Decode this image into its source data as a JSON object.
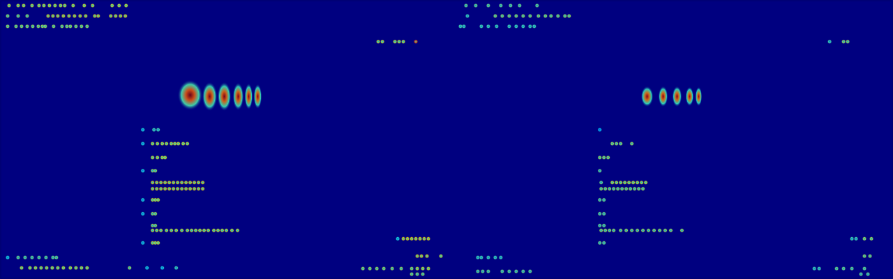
{
  "chart_data": {
    "type": "heatmap",
    "tick_labels": false,
    "grid": false,
    "xlim": [
      0,
      1280
    ],
    "ylim": [
      0,
      400
    ],
    "value_range": [
      0,
      1
    ],
    "blobs": [
      [
        272,
        264,
        1,
        36,
        44
      ],
      [
        300,
        262,
        0.97,
        22,
        42
      ],
      [
        321,
        262,
        0.97,
        20,
        42
      ],
      [
        341,
        262,
        0.96,
        16,
        40
      ],
      [
        356,
        262,
        0.95,
        12,
        38
      ],
      [
        369,
        262,
        0.95,
        12,
        36
      ],
      [
        928,
        262,
        0.95,
        18,
        30
      ],
      [
        951,
        262,
        0.95,
        14,
        30
      ],
      [
        971,
        262,
        0.95,
        14,
        30
      ],
      [
        989,
        262,
        0.93,
        12,
        28
      ],
      [
        1002,
        262,
        0.93,
        10,
        28
      ]
    ],
    "points": [
      [
        12,
        393,
        0.6
      ],
      [
        25,
        393,
        0.6
      ],
      [
        33,
        393,
        0.6
      ],
      [
        45,
        393,
        0.6
      ],
      [
        55,
        393,
        0.6
      ],
      [
        62,
        393,
        0.6
      ],
      [
        70,
        393,
        0.6
      ],
      [
        78,
        393,
        0.6
      ],
      [
        86,
        393,
        0.6
      ],
      [
        92,
        393,
        0.6
      ],
      [
        104,
        393,
        0.6
      ],
      [
        120,
        393,
        0.6
      ],
      [
        132,
        393,
        0.6
      ],
      [
        160,
        393,
        0.6
      ],
      [
        170,
        393,
        0.6
      ],
      [
        180,
        393,
        0.6
      ],
      [
        10,
        378,
        0.55
      ],
      [
        25,
        378,
        0.55
      ],
      [
        38,
        378,
        0.55
      ],
      [
        68,
        378,
        0.65
      ],
      [
        75,
        378,
        0.65
      ],
      [
        82,
        378,
        0.65
      ],
      [
        90,
        378,
        0.65
      ],
      [
        98,
        378,
        0.65
      ],
      [
        106,
        378,
        0.65
      ],
      [
        114,
        378,
        0.65
      ],
      [
        122,
        378,
        0.65
      ],
      [
        135,
        378,
        0.65
      ],
      [
        140,
        378,
        0.65
      ],
      [
        158,
        378,
        0.65
      ],
      [
        165,
        378,
        0.65
      ],
      [
        172,
        378,
        0.65
      ],
      [
        179,
        378,
        0.65
      ],
      [
        10,
        363,
        0.55
      ],
      [
        22,
        363,
        0.55
      ],
      [
        30,
        363,
        0.55
      ],
      [
        38,
        363,
        0.55
      ],
      [
        46,
        363,
        0.55
      ],
      [
        54,
        363,
        0.55
      ],
      [
        60,
        363,
        0.55
      ],
      [
        64,
        363,
        0.55
      ],
      [
        76,
        363,
        0.55
      ],
      [
        88,
        363,
        0.55
      ],
      [
        95,
        363,
        0.55
      ],
      [
        100,
        363,
        0.55
      ],
      [
        108,
        363,
        0.55
      ],
      [
        116,
        363,
        0.55
      ],
      [
        124,
        363,
        0.55
      ],
      [
        542,
        341,
        0.6
      ],
      [
        548,
        341,
        0.6
      ],
      [
        566,
        341,
        0.6
      ],
      [
        572,
        341,
        0.6
      ],
      [
        578,
        341,
        0.6
      ],
      [
        596,
        341,
        0.8
      ],
      [
        204,
        214,
        0.4
      ],
      [
        220,
        214,
        0.45
      ],
      [
        226,
        214,
        0.45
      ],
      [
        204,
        194,
        0.4
      ],
      [
        218,
        194,
        0.6
      ],
      [
        225,
        194,
        0.6
      ],
      [
        232,
        194,
        0.6
      ],
      [
        238,
        194,
        0.6
      ],
      [
        245,
        194,
        0.6
      ],
      [
        250,
        194,
        0.6
      ],
      [
        255,
        194,
        0.6
      ],
      [
        262,
        194,
        0.6
      ],
      [
        268,
        194,
        0.6
      ],
      [
        218,
        174,
        0.6
      ],
      [
        225,
        174,
        0.6
      ],
      [
        232,
        174,
        0.6
      ],
      [
        236,
        174,
        0.6
      ],
      [
        204,
        155,
        0.4
      ],
      [
        218,
        155,
        0.55
      ],
      [
        222,
        155,
        0.55
      ],
      [
        218,
        138,
        0.65
      ],
      [
        224,
        138,
        0.65
      ],
      [
        230,
        138,
        0.65
      ],
      [
        236,
        138,
        0.65
      ],
      [
        242,
        138,
        0.65
      ],
      [
        248,
        138,
        0.65
      ],
      [
        254,
        138,
        0.65
      ],
      [
        260,
        138,
        0.65
      ],
      [
        266,
        138,
        0.65
      ],
      [
        272,
        138,
        0.65
      ],
      [
        278,
        138,
        0.65
      ],
      [
        284,
        138,
        0.65
      ],
      [
        290,
        138,
        0.65
      ],
      [
        218,
        129,
        0.65
      ],
      [
        224,
        129,
        0.65
      ],
      [
        230,
        129,
        0.65
      ],
      [
        236,
        129,
        0.65
      ],
      [
        242,
        129,
        0.65
      ],
      [
        248,
        129,
        0.65
      ],
      [
        254,
        129,
        0.65
      ],
      [
        260,
        129,
        0.65
      ],
      [
        266,
        129,
        0.65
      ],
      [
        272,
        129,
        0.65
      ],
      [
        278,
        129,
        0.65
      ],
      [
        284,
        129,
        0.65
      ],
      [
        290,
        129,
        0.65
      ],
      [
        204,
        113,
        0.4
      ],
      [
        218,
        113,
        0.6
      ],
      [
        222,
        113,
        0.6
      ],
      [
        226,
        113,
        0.6
      ],
      [
        204,
        93,
        0.4
      ],
      [
        218,
        93,
        0.55
      ],
      [
        222,
        93,
        0.55
      ],
      [
        218,
        76,
        0.55
      ],
      [
        222,
        76,
        0.55
      ],
      [
        218,
        69,
        0.6
      ],
      [
        224,
        69,
        0.6
      ],
      [
        230,
        69,
        0.6
      ],
      [
        238,
        69,
        0.6
      ],
      [
        245,
        69,
        0.6
      ],
      [
        252,
        69,
        0.6
      ],
      [
        260,
        69,
        0.6
      ],
      [
        268,
        69,
        0.6
      ],
      [
        274,
        69,
        0.6
      ],
      [
        280,
        69,
        0.6
      ],
      [
        286,
        69,
        0.6
      ],
      [
        292,
        69,
        0.6
      ],
      [
        298,
        69,
        0.6
      ],
      [
        306,
        69,
        0.6
      ],
      [
        312,
        69,
        0.6
      ],
      [
        318,
        69,
        0.6
      ],
      [
        324,
        69,
        0.6
      ],
      [
        332,
        69,
        0.6
      ],
      [
        340,
        69,
        0.6
      ],
      [
        204,
        51,
        0.4
      ],
      [
        218,
        51,
        0.6
      ],
      [
        222,
        51,
        0.6
      ],
      [
        226,
        51,
        0.6
      ],
      [
        570,
        57,
        0.4
      ],
      [
        578,
        57,
        0.65
      ],
      [
        584,
        57,
        0.65
      ],
      [
        590,
        57,
        0.65
      ],
      [
        596,
        57,
        0.65
      ],
      [
        602,
        57,
        0.65
      ],
      [
        608,
        57,
        0.65
      ],
      [
        614,
        57,
        0.65
      ],
      [
        598,
        32,
        0.65
      ],
      [
        604,
        32,
        0.65
      ],
      [
        612,
        32,
        0.65
      ],
      [
        632,
        32,
        0.6
      ],
      [
        10,
        30,
        0.4
      ],
      [
        25,
        30,
        0.5
      ],
      [
        35,
        30,
        0.5
      ],
      [
        45,
        30,
        0.5
      ],
      [
        55,
        30,
        0.5
      ],
      [
        65,
        30,
        0.5
      ],
      [
        75,
        30,
        0.5
      ],
      [
        80,
        30,
        0.5
      ],
      [
        30,
        15,
        0.6
      ],
      [
        42,
        15,
        0.6
      ],
      [
        50,
        15,
        0.6
      ],
      [
        58,
        15,
        0.6
      ],
      [
        66,
        15,
        0.6
      ],
      [
        74,
        15,
        0.6
      ],
      [
        82,
        15,
        0.6
      ],
      [
        90,
        15,
        0.6
      ],
      [
        100,
        15,
        0.6
      ],
      [
        108,
        15,
        0.6
      ],
      [
        116,
        15,
        0.6
      ],
      [
        124,
        15,
        0.6
      ],
      [
        185,
        15,
        0.55
      ],
      [
        210,
        15,
        0.4
      ],
      [
        232,
        15,
        0.4
      ],
      [
        252,
        15,
        0.45
      ],
      [
        520,
        14,
        0.55
      ],
      [
        530,
        14,
        0.55
      ],
      [
        540,
        14,
        0.55
      ],
      [
        550,
        14,
        0.55
      ],
      [
        562,
        14,
        0.55
      ],
      [
        575,
        14,
        0.55
      ],
      [
        590,
        14,
        0.55
      ],
      [
        598,
        14,
        0.6
      ],
      [
        606,
        14,
        0.6
      ],
      [
        614,
        14,
        0.6
      ],
      [
        590,
        6,
        0.55
      ],
      [
        598,
        6,
        0.55
      ],
      [
        606,
        6,
        0.55
      ],
      [
        668,
        393,
        0.5
      ],
      [
        682,
        393,
        0.5
      ],
      [
        700,
        393,
        0.5
      ],
      [
        718,
        393,
        0.5
      ],
      [
        732,
        393,
        0.5
      ],
      [
        745,
        393,
        0.5
      ],
      [
        770,
        393,
        0.5
      ],
      [
        670,
        378,
        0.45
      ],
      [
        710,
        378,
        0.55
      ],
      [
        720,
        378,
        0.55
      ],
      [
        730,
        378,
        0.55
      ],
      [
        740,
        378,
        0.55
      ],
      [
        750,
        378,
        0.55
      ],
      [
        760,
        378,
        0.55
      ],
      [
        772,
        378,
        0.55
      ],
      [
        782,
        378,
        0.55
      ],
      [
        790,
        378,
        0.55
      ],
      [
        800,
        378,
        0.55
      ],
      [
        810,
        378,
        0.55
      ],
      [
        816,
        378,
        0.55
      ],
      [
        660,
        363,
        0.45
      ],
      [
        665,
        363,
        0.45
      ],
      [
        690,
        363,
        0.45
      ],
      [
        700,
        363,
        0.45
      ],
      [
        712,
        363,
        0.45
      ],
      [
        730,
        363,
        0.45
      ],
      [
        740,
        363,
        0.45
      ],
      [
        750,
        363,
        0.45
      ],
      [
        760,
        363,
        0.45
      ],
      [
        766,
        363,
        0.45
      ],
      [
        1190,
        341,
        0.45
      ],
      [
        1210,
        341,
        0.55
      ],
      [
        1216,
        341,
        0.55
      ],
      [
        860,
        214,
        0.35
      ],
      [
        878,
        194,
        0.55
      ],
      [
        884,
        194,
        0.55
      ],
      [
        890,
        194,
        0.55
      ],
      [
        906,
        194,
        0.55
      ],
      [
        860,
        174,
        0.55
      ],
      [
        866,
        174,
        0.55
      ],
      [
        872,
        174,
        0.55
      ],
      [
        860,
        155,
        0.5
      ],
      [
        862,
        138,
        0.5
      ],
      [
        878,
        138,
        0.6
      ],
      [
        884,
        138,
        0.6
      ],
      [
        890,
        138,
        0.6
      ],
      [
        896,
        138,
        0.6
      ],
      [
        902,
        138,
        0.6
      ],
      [
        908,
        138,
        0.6
      ],
      [
        914,
        138,
        0.6
      ],
      [
        920,
        138,
        0.6
      ],
      [
        926,
        138,
        0.6
      ],
      [
        862,
        129,
        0.55
      ],
      [
        868,
        129,
        0.55
      ],
      [
        874,
        129,
        0.55
      ],
      [
        880,
        129,
        0.55
      ],
      [
        886,
        129,
        0.55
      ],
      [
        892,
        129,
        0.55
      ],
      [
        898,
        129,
        0.55
      ],
      [
        904,
        129,
        0.55
      ],
      [
        910,
        129,
        0.55
      ],
      [
        916,
        129,
        0.55
      ],
      [
        922,
        129,
        0.55
      ],
      [
        860,
        113,
        0.5
      ],
      [
        866,
        113,
        0.5
      ],
      [
        860,
        93,
        0.5
      ],
      [
        866,
        93,
        0.5
      ],
      [
        860,
        76,
        0.5
      ],
      [
        866,
        76,
        0.5
      ],
      [
        862,
        69,
        0.55
      ],
      [
        868,
        69,
        0.55
      ],
      [
        874,
        69,
        0.55
      ],
      [
        880,
        69,
        0.55
      ],
      [
        890,
        69,
        0.55
      ],
      [
        898,
        69,
        0.55
      ],
      [
        906,
        69,
        0.55
      ],
      [
        914,
        69,
        0.55
      ],
      [
        922,
        69,
        0.55
      ],
      [
        930,
        69,
        0.55
      ],
      [
        938,
        69,
        0.55
      ],
      [
        946,
        69,
        0.55
      ],
      [
        954,
        69,
        0.55
      ],
      [
        962,
        69,
        0.55
      ],
      [
        978,
        69,
        0.55
      ],
      [
        860,
        51,
        0.5
      ],
      [
        866,
        51,
        0.5
      ],
      [
        1222,
        57,
        0.45
      ],
      [
        1228,
        57,
        0.45
      ],
      [
        1240,
        57,
        0.55
      ],
      [
        1250,
        57,
        0.55
      ],
      [
        1240,
        32,
        0.55
      ],
      [
        1248,
        32,
        0.55
      ],
      [
        685,
        30,
        0.45
      ],
      [
        690,
        30,
        0.45
      ],
      [
        700,
        30,
        0.45
      ],
      [
        710,
        30,
        0.45
      ],
      [
        718,
        30,
        0.45
      ],
      [
        685,
        10,
        0.5
      ],
      [
        692,
        10,
        0.5
      ],
      [
        700,
        10,
        0.5
      ],
      [
        720,
        10,
        0.5
      ],
      [
        730,
        10,
        0.5
      ],
      [
        740,
        10,
        0.5
      ],
      [
        750,
        10,
        0.5
      ],
      [
        760,
        10,
        0.5
      ],
      [
        1168,
        14,
        0.45
      ],
      [
        1175,
        14,
        0.45
      ],
      [
        1200,
        14,
        0.5
      ],
      [
        1210,
        14,
        0.5
      ],
      [
        1222,
        14,
        0.5
      ],
      [
        1240,
        14,
        0.5
      ],
      [
        1235,
        6,
        0.5
      ],
      [
        1245,
        6,
        0.5
      ]
    ]
  }
}
